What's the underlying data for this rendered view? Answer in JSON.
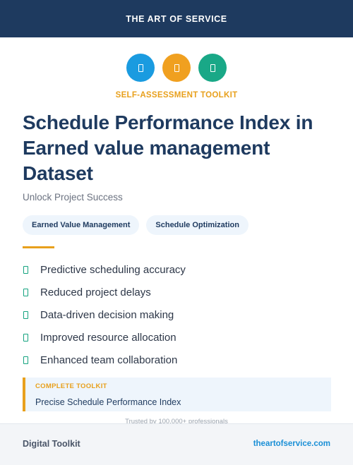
{
  "header": {
    "brand": "THE ART OF SERVICE"
  },
  "icons": [
    {
      "name": "document-icon",
      "color": "#1a9be0"
    },
    {
      "name": "document-icon",
      "color": "#f0a020"
    },
    {
      "name": "document-icon",
      "color": "#19a887"
    }
  ],
  "kicker": "SELF-ASSESSMENT TOOLKIT",
  "title": "Schedule Performance Index in Earned value management Dataset",
  "subtitle": "Unlock Project Success",
  "tags": [
    "Earned Value Management",
    "Schedule Optimization"
  ],
  "features": [
    "Predictive scheduling accuracy",
    "Reduced project delays",
    "Data-driven decision making",
    "Improved resource allocation",
    "Enhanced team collaboration"
  ],
  "callout": {
    "label": "COMPLETE TOOLKIT",
    "text": "Precise Schedule Performance Index"
  },
  "trusted": "Trusted by 100,000+ professionals",
  "footer": {
    "left": "Digital Toolkit",
    "right": "theartofservice.com"
  },
  "colors": {
    "navy": "#1e3a5f",
    "accent": "#e8a01c",
    "link": "#1a8fd6",
    "check": "#14a37f"
  }
}
